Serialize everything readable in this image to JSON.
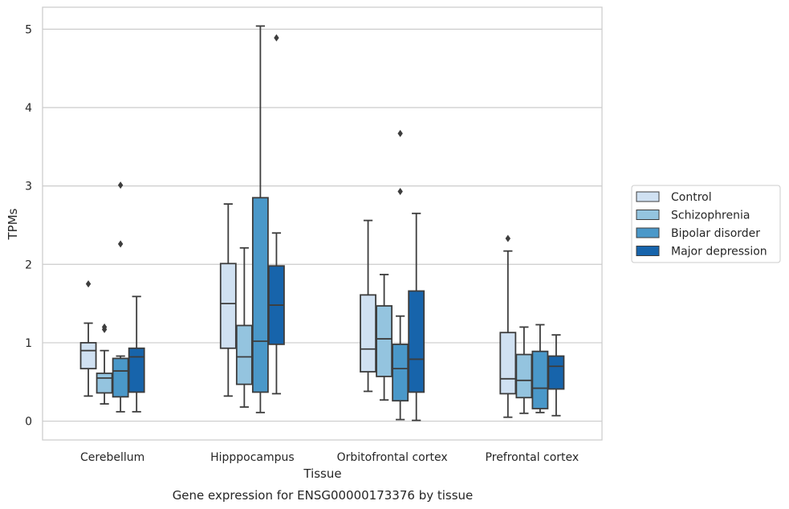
{
  "caption": "Gene expression for ENSG00000173376 by tissue",
  "chart_data": {
    "type": "box",
    "xlabel": "Tissue",
    "ylabel": "TPMs",
    "ylim": [
      -0.24,
      5.28
    ],
    "yticks": [
      0,
      1,
      2,
      3,
      4,
      5
    ],
    "grid": "horizontal",
    "legend_position": "right",
    "categories": [
      "Cerebellum",
      "Hipppocampus",
      "Orbitofrontal cortex",
      "Prefrontal cortex"
    ],
    "series": [
      {
        "name": "Control",
        "color": "#d0e1f2",
        "boxes": [
          {
            "whisker_low": 0.32,
            "q1": 0.67,
            "median": 0.9,
            "q3": 1.0,
            "whisker_high": 1.25,
            "outliers": [
              1.75
            ]
          },
          {
            "whisker_low": 0.32,
            "q1": 0.93,
            "median": 1.5,
            "q3": 2.01,
            "whisker_high": 2.77,
            "outliers": []
          },
          {
            "whisker_low": 0.38,
            "q1": 0.63,
            "median": 0.92,
            "q3": 1.61,
            "whisker_high": 2.56,
            "outliers": []
          },
          {
            "whisker_low": 0.05,
            "q1": 0.35,
            "median": 0.54,
            "q3": 1.13,
            "whisker_high": 2.17,
            "outliers": [
              2.33
            ]
          }
        ]
      },
      {
        "name": "Schizophrenia",
        "color": "#94c4df",
        "boxes": [
          {
            "whisker_low": 0.22,
            "q1": 0.36,
            "median": 0.55,
            "q3": 0.61,
            "whisker_high": 0.9,
            "outliers": [
              1.17,
              1.2
            ]
          },
          {
            "whisker_low": 0.18,
            "q1": 0.47,
            "median": 0.82,
            "q3": 1.22,
            "whisker_high": 2.21,
            "outliers": []
          },
          {
            "whisker_low": 0.27,
            "q1": 0.57,
            "median": 1.05,
            "q3": 1.47,
            "whisker_high": 1.87,
            "outliers": []
          },
          {
            "whisker_low": 0.1,
            "q1": 0.3,
            "median": 0.52,
            "q3": 0.85,
            "whisker_high": 1.2,
            "outliers": []
          }
        ]
      },
      {
        "name": "Bipolar disorder",
        "color": "#4a98c9",
        "boxes": [
          {
            "whisker_low": 0.12,
            "q1": 0.31,
            "median": 0.64,
            "q3": 0.8,
            "whisker_high": 0.83,
            "outliers": [
              2.26,
              3.01
            ]
          },
          {
            "whisker_low": 0.11,
            "q1": 0.37,
            "median": 1.02,
            "q3": 2.85,
            "whisker_high": 5.04,
            "outliers": []
          },
          {
            "whisker_low": 0.02,
            "q1": 0.26,
            "median": 0.67,
            "q3": 0.98,
            "whisker_high": 1.34,
            "outliers": [
              2.93,
              3.67
            ]
          },
          {
            "whisker_low": 0.11,
            "q1": 0.16,
            "median": 0.42,
            "q3": 0.89,
            "whisker_high": 1.23,
            "outliers": []
          }
        ]
      },
      {
        "name": "Major depression",
        "color": "#1764ab",
        "boxes": [
          {
            "whisker_low": 0.12,
            "q1": 0.37,
            "median": 0.82,
            "q3": 0.93,
            "whisker_high": 1.59,
            "outliers": []
          },
          {
            "whisker_low": 0.35,
            "q1": 0.98,
            "median": 1.48,
            "q3": 1.98,
            "whisker_high": 2.4,
            "outliers": [
              4.89
            ]
          },
          {
            "whisker_low": 0.01,
            "q1": 0.37,
            "median": 0.79,
            "q3": 1.66,
            "whisker_high": 2.65,
            "outliers": []
          },
          {
            "whisker_low": 0.07,
            "q1": 0.41,
            "median": 0.7,
            "q3": 0.83,
            "whisker_high": 1.1,
            "outliers": []
          }
        ]
      }
    ]
  }
}
